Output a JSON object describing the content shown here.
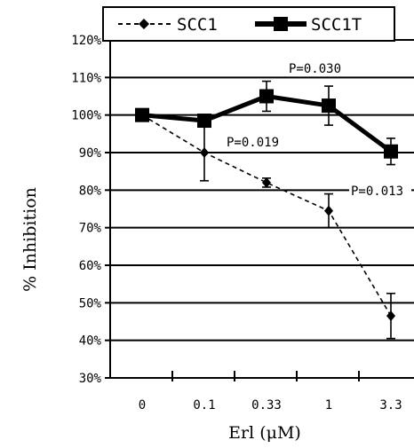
{
  "chart_data": {
    "type": "line",
    "categories": [
      "0",
      "0.1",
      "0.33",
      "1",
      "3.3"
    ],
    "xlabel": "Erl (μM)",
    "ylabel": "% Inhibition",
    "ylim": [
      30,
      120
    ],
    "y_ticks": [
      "30%",
      "40%",
      "50%",
      "60%",
      "70%",
      "80%",
      "90%",
      "100%",
      "110%",
      "120%"
    ],
    "grid": true,
    "legend_position": "top",
    "series": [
      {
        "name": "SCC1",
        "style": "dashed",
        "marker": "diamond",
        "values": [
          100,
          90,
          82,
          74.5,
          46.5
        ],
        "error": [
          0,
          7.5,
          1.2,
          4.5,
          6
        ]
      },
      {
        "name": "SCC1T",
        "style": "solid-bold",
        "marker": "square",
        "values": [
          100,
          98.5,
          105,
          102.5,
          90.3
        ],
        "error": [
          0,
          1.5,
          4,
          5.2,
          3.5
        ]
      }
    ],
    "annotations": [
      {
        "text": "P=0.030",
        "category": "1",
        "y": 112.5
      },
      {
        "text": "P=0.019",
        "category": "0.33",
        "y": 92.8
      },
      {
        "text": "P=0.013",
        "category": "3.3",
        "y": 79.9
      }
    ],
    "colors": {
      "line": "#000000",
      "background": "#ffffff"
    }
  }
}
